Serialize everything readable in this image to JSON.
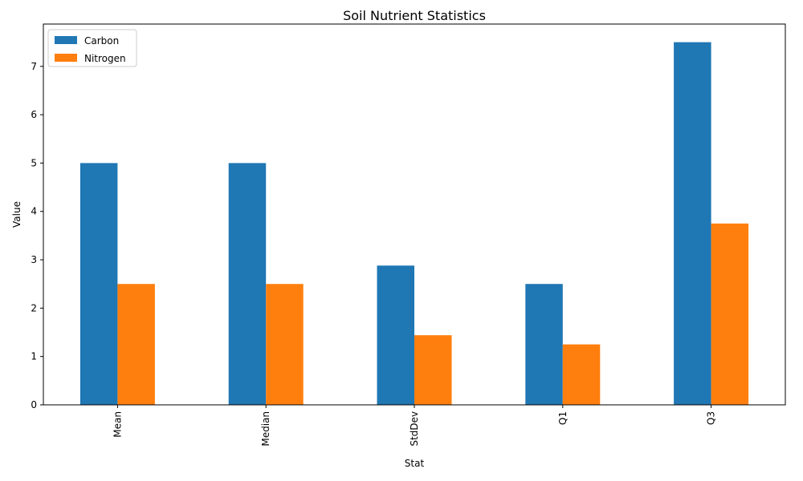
{
  "chart_data": {
    "type": "bar",
    "title": "Soil Nutrient Statistics",
    "xlabel": "Stat",
    "ylabel": "Value",
    "categories": [
      "Mean",
      "Median",
      "StdDev",
      "Q1",
      "Q3"
    ],
    "series": [
      {
        "name": "Carbon",
        "color": "#1f77b4",
        "values": [
          5.0,
          5.0,
          2.88,
          2.5,
          7.5
        ]
      },
      {
        "name": "Nitrogen",
        "color": "#ff7f0e",
        "values": [
          2.5,
          2.5,
          1.44,
          1.25,
          3.75
        ]
      }
    ],
    "ylim": [
      0,
      7.875
    ],
    "yticks": [
      "0",
      "1",
      "2",
      "3",
      "4",
      "5",
      "6",
      "7"
    ],
    "legend_position": "top-left",
    "grid": false
  }
}
